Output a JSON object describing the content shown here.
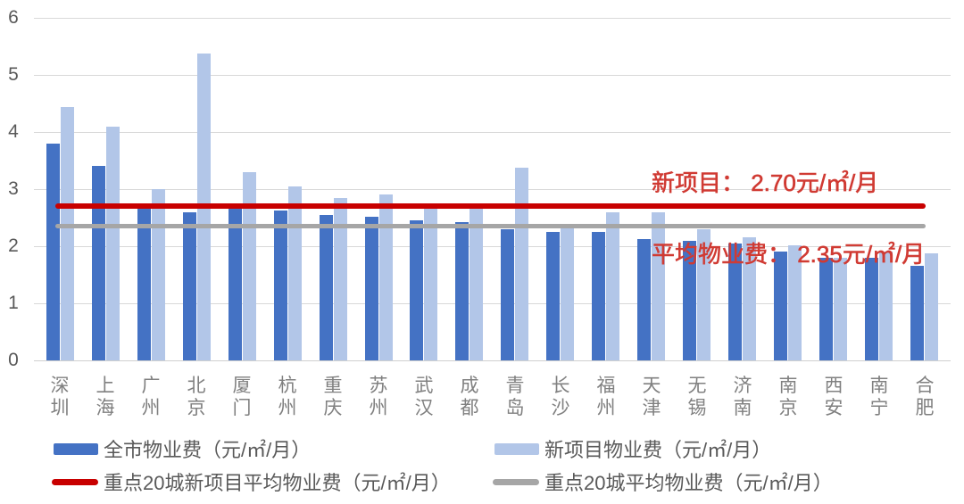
{
  "chart_data": {
    "type": "bar",
    "categories": [
      "深圳",
      "上海",
      "广州",
      "北京",
      "厦门",
      "杭州",
      "重庆",
      "苏州",
      "武汉",
      "成都",
      "青岛",
      "长沙",
      "福州",
      "天津",
      "无锡",
      "济南",
      "南京",
      "西安",
      "南宁",
      "合肥"
    ],
    "series": [
      {
        "name": "全市物业费（元/㎡/月）",
        "color": "#4472c4",
        "values": [
          3.8,
          3.4,
          2.65,
          2.6,
          2.65,
          2.62,
          2.55,
          2.52,
          2.45,
          2.42,
          2.3,
          2.25,
          2.25,
          2.12,
          2.1,
          2.05,
          1.9,
          1.8,
          1.8,
          1.65
        ]
      },
      {
        "name": "新项目物业费（元/㎡/月）",
        "color": "#b2c6e8",
        "values": [
          4.43,
          4.1,
          3.0,
          5.38,
          3.3,
          3.05,
          2.85,
          2.9,
          2.65,
          2.75,
          3.38,
          2.32,
          2.6,
          2.6,
          2.3,
          2.15,
          2.02,
          1.8,
          1.9,
          1.88
        ]
      }
    ],
    "ref_lines": [
      {
        "name": "重点20城新项目平均物业费（元/㎡/月）",
        "value": 2.7,
        "color": "#c80000",
        "annotation": "新项目： 2.70元/㎡/月"
      },
      {
        "name": "重点20城平均物业费（元/㎡/月）",
        "value": 2.35,
        "color": "#a6a6a6",
        "annotation": "平均物业费： 2.35元/㎡/月"
      }
    ],
    "annotation_color": "#d03a33",
    "ylim": [
      0,
      6
    ],
    "yticks": [
      0,
      1,
      2,
      3,
      4,
      5,
      6
    ],
    "grid": true,
    "legend_position": "bottom"
  }
}
